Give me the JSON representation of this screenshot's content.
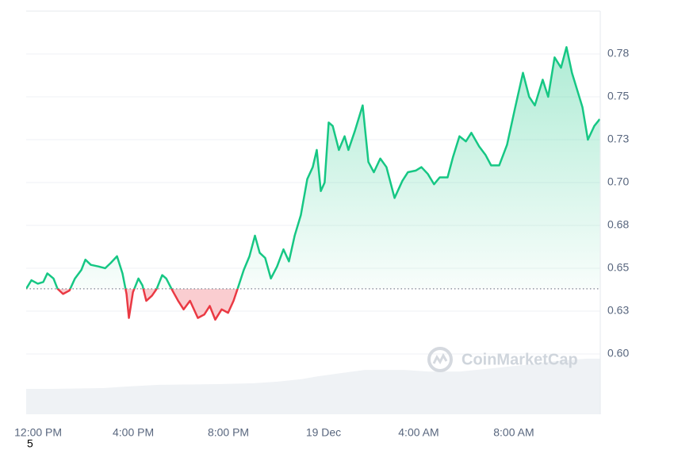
{
  "chart_data": {
    "type": "line",
    "x": [
      -0.17,
      0.05,
      0.32,
      0.55,
      0.72,
      0.98,
      1.15,
      1.38,
      1.65,
      1.88,
      2.15,
      2.32,
      2.55,
      2.88,
      3.15,
      3.38,
      3.65,
      3.88,
      4.05,
      4.15,
      4.32,
      4.55,
      4.72,
      4.88,
      5.12,
      5.32,
      5.55,
      5.72,
      5.98,
      6.22,
      6.45,
      6.72,
      7.05,
      7.32,
      7.55,
      7.78,
      8.05,
      8.32,
      8.55,
      8.72,
      8.98,
      9.22,
      9.45,
      9.65,
      9.88,
      10.12,
      10.38,
      10.65,
      10.88,
      11.12,
      11.38,
      11.65,
      11.88,
      12.05,
      12.22,
      12.38,
      12.55,
      12.72,
      12.98,
      13.22,
      13.38,
      13.65,
      13.98,
      14.22,
      14.45,
      14.72,
      14.98,
      15.32,
      15.65,
      15.88,
      16.22,
      16.45,
      16.72,
      16.98,
      17.22,
      17.55,
      17.78,
      18.05,
      18.32,
      18.55,
      18.88,
      19.15,
      19.38,
      19.72,
      20.05,
      20.38,
      20.72,
      20.98,
      21.22,
      21.55,
      21.78,
      22.05,
      22.32,
      22.55,
      22.78,
      23.22,
      23.45,
      23.72,
      23.95
    ],
    "values": [
      0.638,
      0.643,
      0.641,
      0.642,
      0.647,
      0.644,
      0.638,
      0.635,
      0.637,
      0.644,
      0.649,
      0.655,
      0.652,
      0.651,
      0.65,
      0.653,
      0.657,
      0.647,
      0.635,
      0.621,
      0.636,
      0.644,
      0.64,
      0.631,
      0.634,
      0.638,
      0.646,
      0.644,
      0.637,
      0.631,
      0.626,
      0.631,
      0.621,
      0.623,
      0.628,
      0.62,
      0.626,
      0.624,
      0.631,
      0.638,
      0.649,
      0.657,
      0.669,
      0.659,
      0.656,
      0.644,
      0.651,
      0.661,
      0.654,
      0.669,
      0.681,
      0.702,
      0.709,
      0.719,
      0.695,
      0.7,
      0.735,
      0.733,
      0.719,
      0.727,
      0.719,
      0.73,
      0.745,
      0.712,
      0.706,
      0.714,
      0.709,
      0.691,
      0.701,
      0.706,
      0.707,
      0.709,
      0.705,
      0.699,
      0.703,
      0.703,
      0.715,
      0.727,
      0.724,
      0.729,
      0.721,
      0.716,
      0.71,
      0.71,
      0.722,
      0.743,
      0.764,
      0.75,
      0.745,
      0.76,
      0.75,
      0.773,
      0.767,
      0.779,
      0.764,
      0.744,
      0.725,
      0.733,
      0.737
    ],
    "baseline": 0.638,
    "color_up": "#16c784",
    "color_down": "#ea3943",
    "xlim": [
      -0.17,
      23.97
    ],
    "ylim": [
      0.5648,
      0.8
    ],
    "xticks": [
      {
        "value": 0,
        "label": "12:00 PM"
      },
      {
        "value": 4,
        "label": "4:00 PM"
      },
      {
        "value": 8,
        "label": "8:00 PM"
      },
      {
        "value": 12,
        "label": "19 Dec"
      },
      {
        "value": 16,
        "label": "4:00 AM"
      },
      {
        "value": 20,
        "label": "8:00 AM"
      }
    ],
    "yticks": [
      {
        "value": 0.6,
        "label": "0.60"
      },
      {
        "value": 0.625,
        "label": "0.63"
      },
      {
        "value": 0.65,
        "label": "0.65"
      },
      {
        "value": 0.675,
        "label": "0.68"
      },
      {
        "value": 0.7,
        "label": "0.70"
      },
      {
        "value": 0.725,
        "label": "0.73"
      },
      {
        "value": 0.75,
        "label": "0.75"
      },
      {
        "value": 0.775,
        "label": "0.78"
      }
    ],
    "grid": true,
    "volume": {
      "x": [
        -0.17,
        0.9,
        3.07,
        4.07,
        5.4,
        8.07,
        9.4,
        10.4,
        11.4,
        12.07,
        13.07,
        14.07,
        15.73,
        16.73,
        18.07,
        19.4,
        20.73,
        22.07,
        23.4,
        23.97
      ],
      "values": [
        6.3,
        6.3,
        6.5,
        6.9,
        7.3,
        7.5,
        7.7,
        8.1,
        8.7,
        9.4,
        10.2,
        11.0,
        11.0,
        10.6,
        10.6,
        11.4,
        12.2,
        13.2,
        13.8,
        13.8
      ],
      "ylim": [
        0,
        100
      ],
      "color": "#eff2f5"
    },
    "watermark": "CoinMarketCap",
    "annotation": "5"
  }
}
